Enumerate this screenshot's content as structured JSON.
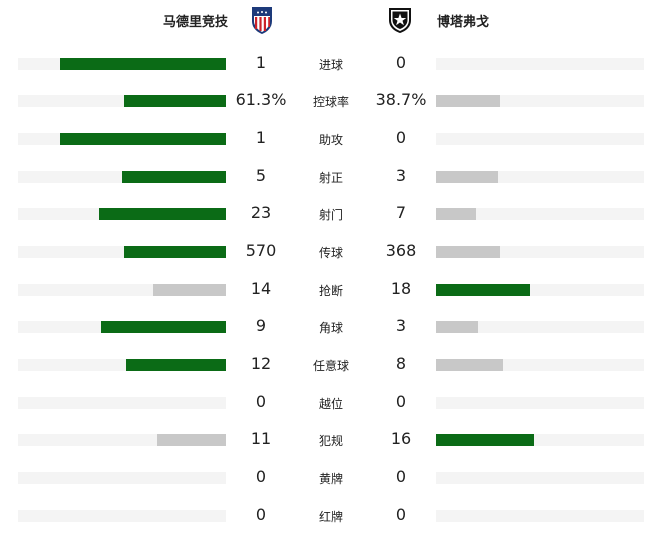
{
  "home_team": {
    "name": "马德里竞技",
    "crest_icon": "atletico-madrid-crest-icon",
    "colors": [
      "#cc2229",
      "#ffffff",
      "#1d3a7a"
    ]
  },
  "away_team": {
    "name": "博塔弗戈",
    "crest_icon": "botafogo-crest-icon",
    "colors": [
      "#111111",
      "#ffffff"
    ]
  },
  "bar_colors": {
    "lead": "#0b6b16",
    "trail": "#c8c8c8",
    "track": "#f4f4f4"
  },
  "stats": [
    {
      "label": "进球",
      "home": "1",
      "away": "0",
      "home_share": 0.8,
      "away_share": 0.0,
      "leader": "home"
    },
    {
      "label": "控球率",
      "home": "61.3%",
      "away": "38.7%",
      "home_share": 0.49,
      "away_share": 0.31,
      "leader": "home"
    },
    {
      "label": "助攻",
      "home": "1",
      "away": "0",
      "home_share": 0.8,
      "away_share": 0.0,
      "leader": "home"
    },
    {
      "label": "射正",
      "home": "5",
      "away": "3",
      "home_share": 0.5,
      "away_share": 0.3,
      "leader": "home"
    },
    {
      "label": "射门",
      "home": "23",
      "away": "7",
      "home_share": 0.61,
      "away_share": 0.19,
      "leader": "home"
    },
    {
      "label": "传球",
      "home": "570",
      "away": "368",
      "home_share": 0.49,
      "away_share": 0.31,
      "leader": "home"
    },
    {
      "label": "抢断",
      "home": "14",
      "away": "18",
      "home_share": 0.35,
      "away_share": 0.45,
      "leader": "away"
    },
    {
      "label": "角球",
      "home": "9",
      "away": "3",
      "home_share": 0.6,
      "away_share": 0.2,
      "leader": "home"
    },
    {
      "label": "任意球",
      "home": "12",
      "away": "8",
      "home_share": 0.48,
      "away_share": 0.32,
      "leader": "home"
    },
    {
      "label": "越位",
      "home": "0",
      "away": "0",
      "home_share": 0.0,
      "away_share": 0.0,
      "leader": "none"
    },
    {
      "label": "犯规",
      "home": "11",
      "away": "16",
      "home_share": 0.33,
      "away_share": 0.47,
      "leader": "away"
    },
    {
      "label": "黄牌",
      "home": "0",
      "away": "0",
      "home_share": 0.0,
      "away_share": 0.0,
      "leader": "none"
    },
    {
      "label": "红牌",
      "home": "0",
      "away": "0",
      "home_share": 0.0,
      "away_share": 0.0,
      "leader": "none"
    }
  ]
}
